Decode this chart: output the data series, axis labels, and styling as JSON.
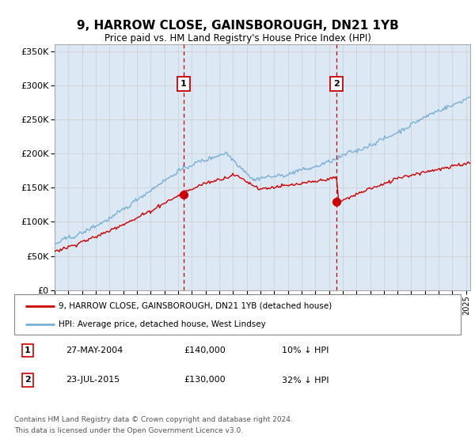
{
  "title": "9, HARROW CLOSE, GAINSBOROUGH, DN21 1YB",
  "subtitle": "Price paid vs. HM Land Registry's House Price Index (HPI)",
  "background_color": "#dce9f5",
  "red_line_color": "#cc0000",
  "blue_line_color": "#7ab0d4",
  "grid_color": "#cccccc",
  "ylim": [
    0,
    360000
  ],
  "yticks": [
    0,
    50000,
    100000,
    150000,
    200000,
    250000,
    300000,
    350000
  ],
  "sale1_x": 2004.4,
  "sale1_y": 140000,
  "sale2_x": 2015.55,
  "sale2_y": 130000,
  "sale1_date": "27-MAY-2004",
  "sale1_price": "£140,000",
  "sale1_pct": "10% ↓ HPI",
  "sale2_date": "23-JUL-2015",
  "sale2_price": "£130,000",
  "sale2_pct": "32% ↓ HPI",
  "legend_red": "9, HARROW CLOSE, GAINSBOROUGH, DN21 1YB (detached house)",
  "legend_blue": "HPI: Average price, detached house, West Lindsey",
  "footer1": "Contains HM Land Registry data © Crown copyright and database right 2024.",
  "footer2": "This data is licensed under the Open Government Licence v3.0.",
  "xmin": 1995.0,
  "xmax": 2025.3
}
